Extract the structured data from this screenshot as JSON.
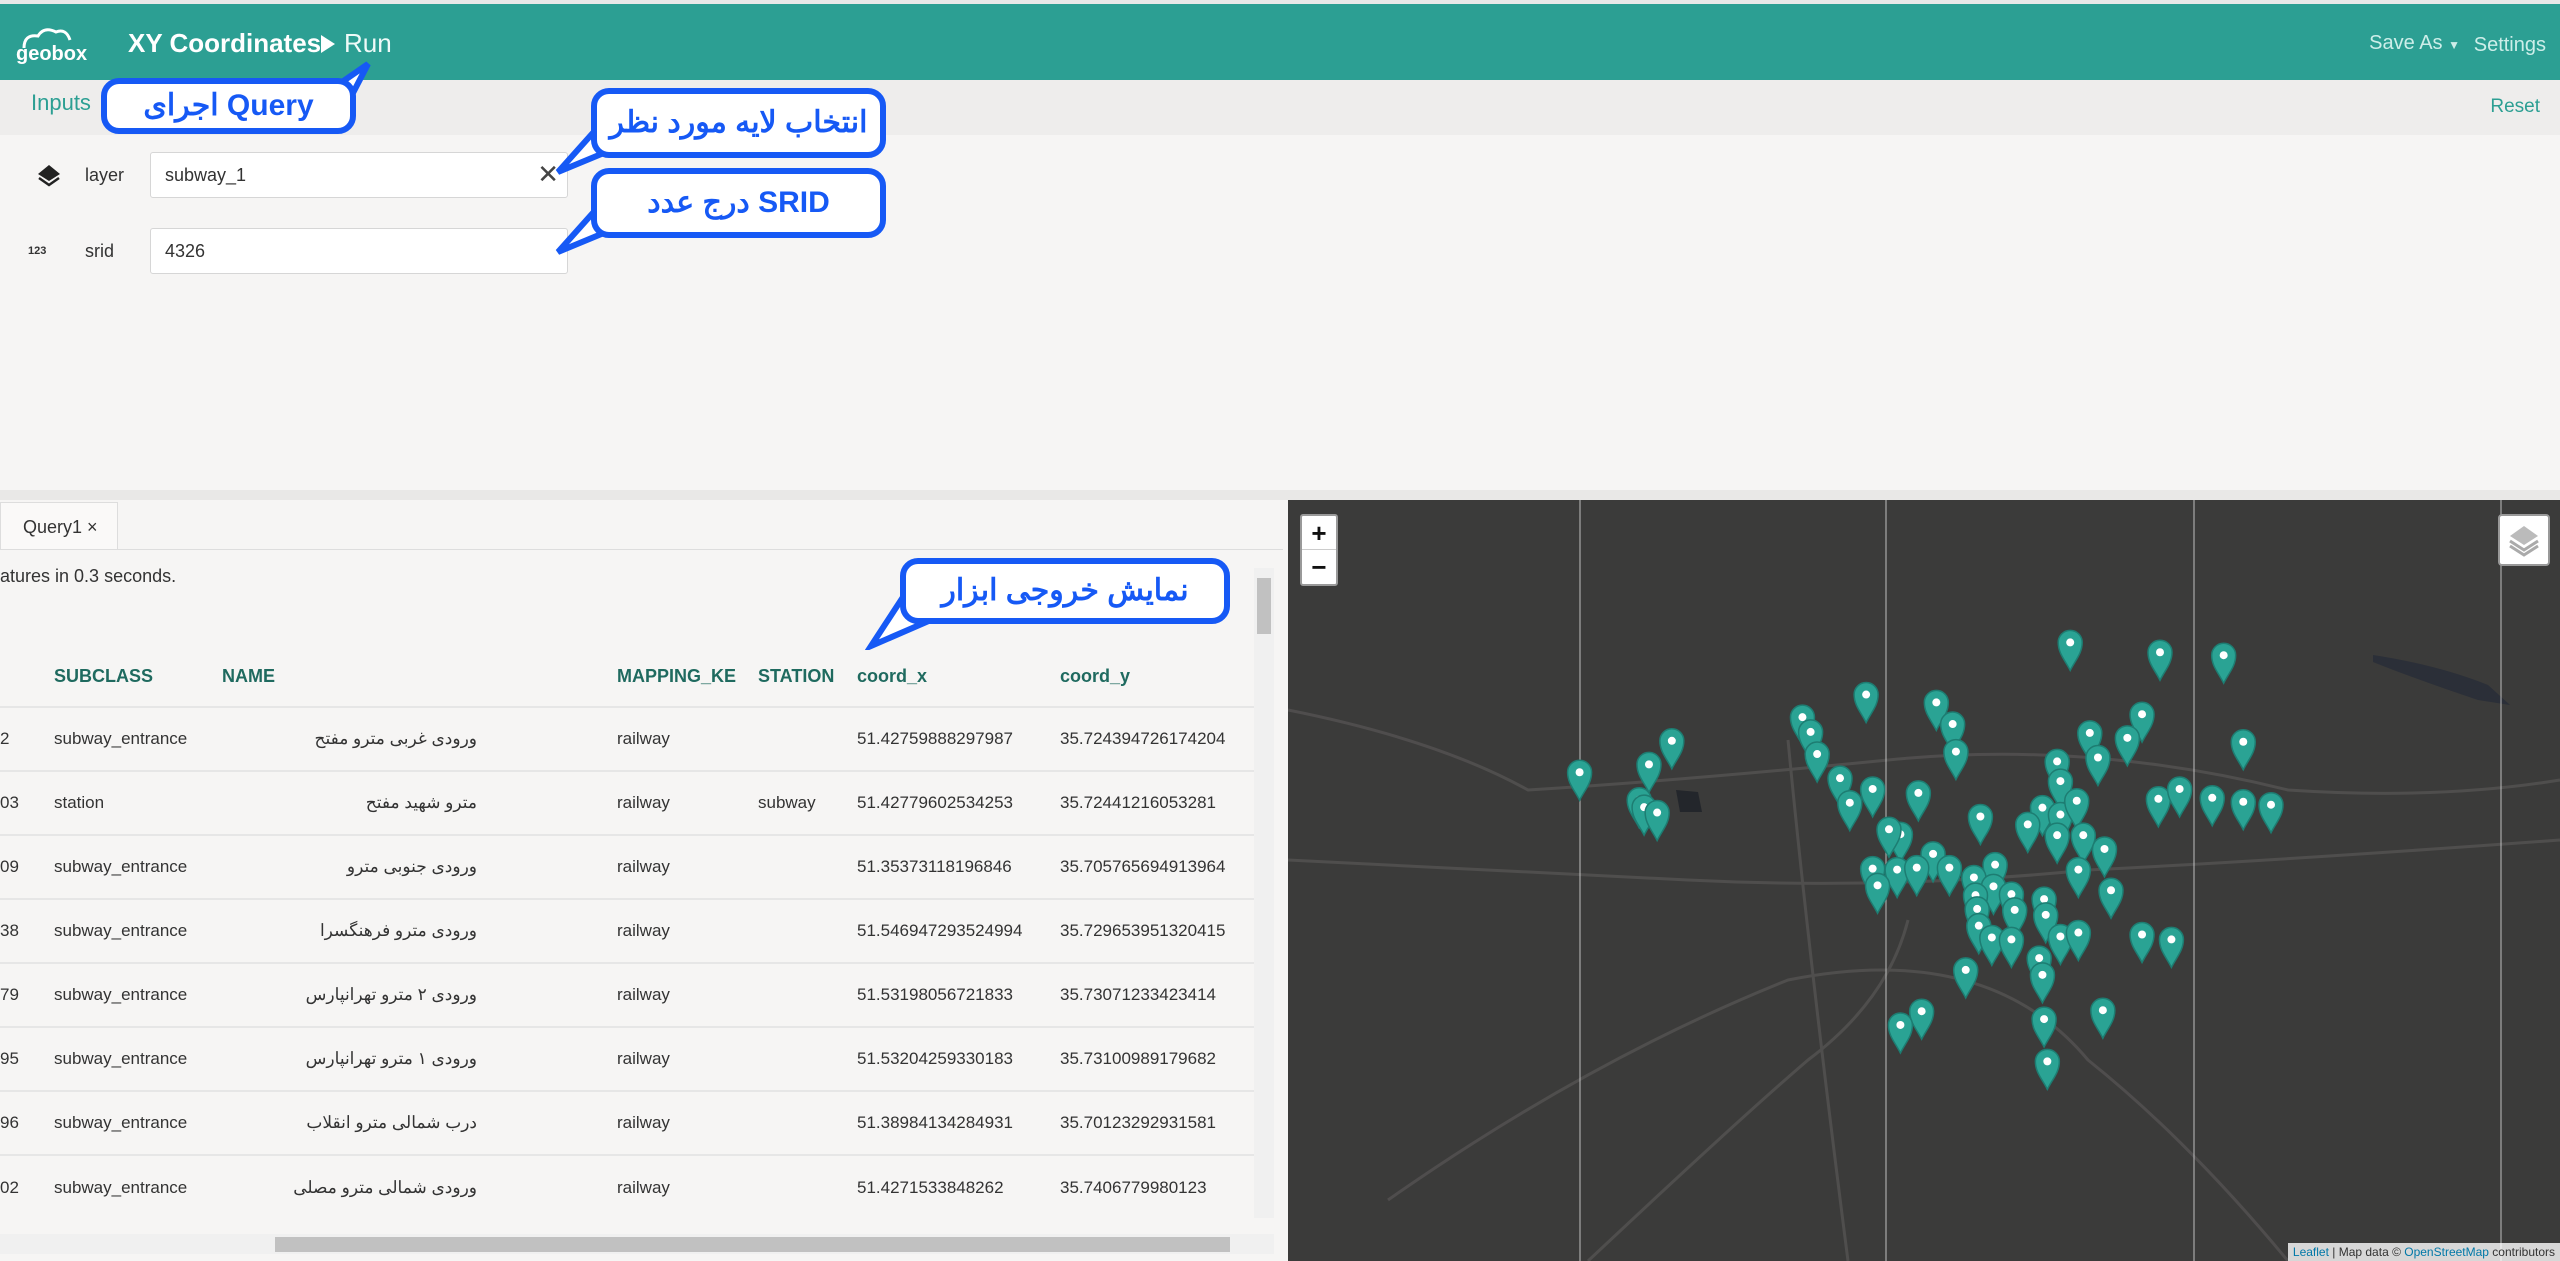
{
  "header": {
    "logo_text": "geobox",
    "app_title": "XY Coordinates",
    "run_label": "Run",
    "save_as_label": "Save As",
    "settings_label": "Settings"
  },
  "inputs": {
    "section_label": "Inputs",
    "reset_label": "Reset",
    "layer": {
      "label": "layer",
      "value": "subway_1"
    },
    "srid": {
      "label": "srid",
      "icon_text": "123",
      "value": "4326"
    }
  },
  "results": {
    "tab_label": "Query1 ×",
    "status": "atures in 0.3 seconds.",
    "columns": [
      "",
      "SUBCLASS",
      "NAME",
      "MAPPING_KE",
      "STATION",
      "coord_x",
      "coord_y"
    ],
    "rows": [
      [
        "2",
        "subway_entrance",
        "ورودی غربی مترو مفتح",
        "railway",
        "",
        "51.42759888297987",
        "35.724394726174204"
      ],
      [
        "03",
        "station",
        "مترو شهید مفتح",
        "railway",
        "subway",
        "51.42779602534253",
        "35.72441216053281"
      ],
      [
        "09",
        "subway_entrance",
        "ورودی جنوبی مترو",
        "railway",
        "",
        "51.35373118196846",
        "35.705765694913964"
      ],
      [
        "38",
        "subway_entrance",
        "ورودی مترو فرهنگسرا",
        "railway",
        "",
        "51.546947293524994",
        "35.729653951320415"
      ],
      [
        "79",
        "subway_entrance",
        "ورودی ۲ مترو تهرانپارس",
        "railway",
        "",
        "51.53198056721833",
        "35.73071233423414"
      ],
      [
        "95",
        "subway_entrance",
        "ورودی ۱ مترو تهرانپارس",
        "railway",
        "",
        "51.53204259330183",
        "35.73100989179682"
      ],
      [
        "96",
        "subway_entrance",
        "درب شمالی مترو انقلاب",
        "railway",
        "",
        "51.38984134284931",
        "35.70123292931581"
      ],
      [
        "02",
        "subway_entrance",
        "ورودی شمالی مترو مصلی",
        "railway",
        "",
        "51.4271533848262",
        "35.7406779980123"
      ]
    ]
  },
  "map": {
    "zoom_in": "+",
    "zoom_out": "−",
    "attribution": {
      "leaflet": "Leaflet",
      "sep": " | Map data © ",
      "osm": "OpenStreetMap",
      "tail": " contributors"
    },
    "marker_color": "#2aa394"
  },
  "annotations": {
    "run_query": "اجرای Query",
    "select_layer": "انتخاب لایه مورد نظر",
    "enter_srid": "درج عدد SRID",
    "show_output": "نمایش خروجی ابزار"
  },
  "colors": {
    "brand": "#2c9f93",
    "annotation": "#1659f5"
  }
}
